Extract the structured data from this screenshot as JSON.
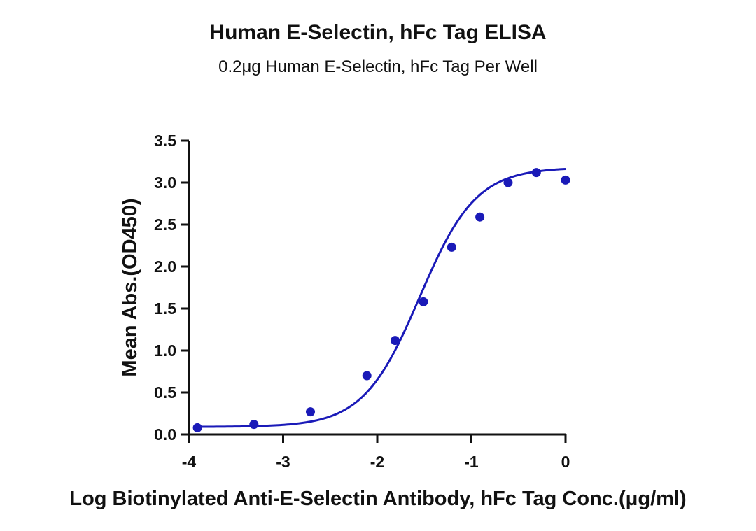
{
  "chart_data": {
    "type": "scatter",
    "title": "Human E-Selectin, hFc Tag ELISA",
    "subtitle": "0.2μg Human E-Selectin, hFc Tag Per Well",
    "xlabel": "Log Biotinylated Anti-E-Selectin Antibody, hFc Tag Conc.(μg/ml)",
    "ylabel": "Mean Abs.(OD450)",
    "xlim": [
      -4,
      0
    ],
    "ylim": [
      0,
      3.5
    ],
    "xticks": [
      "-4",
      "-3",
      "-2",
      "-1",
      "0"
    ],
    "yticks": [
      "0.0",
      "0.5",
      "1.0",
      "1.5",
      "2.0",
      "2.5",
      "3.0",
      "3.5"
    ],
    "grid": false,
    "colors": {
      "series": "#1a1ab8",
      "axis": "#111111"
    },
    "series": [
      {
        "points": [
          {
            "x": -3.91,
            "y": 0.08
          },
          {
            "x": -3.31,
            "y": 0.12
          },
          {
            "x": -2.71,
            "y": 0.27
          },
          {
            "x": -2.11,
            "y": 0.7
          },
          {
            "x": -1.81,
            "y": 1.12
          },
          {
            "x": -1.51,
            "y": 1.58
          },
          {
            "x": -1.21,
            "y": 2.23
          },
          {
            "x": -0.91,
            "y": 2.59
          },
          {
            "x": -0.61,
            "y": 3.0
          },
          {
            "x": -0.31,
            "y": 3.12
          },
          {
            "x": 0.0,
            "y": 3.03
          }
        ],
        "fit": {
          "model": "4PL",
          "bottom": 0.09,
          "top": 3.18,
          "log_ec50": -1.55,
          "hill": 1.45
        }
      }
    ]
  }
}
